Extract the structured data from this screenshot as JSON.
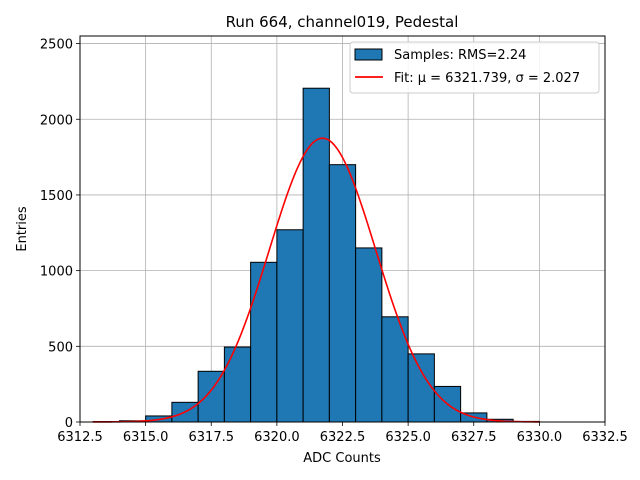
{
  "chart_data": {
    "type": "bar",
    "title": "Run 664, channel019, Pedestal",
    "xlabel": "ADC Counts",
    "ylabel": "Entries",
    "xlim": [
      6312.5,
      6332.5
    ],
    "ylim": [
      0,
      2550
    ],
    "xticks": [
      "6312.5",
      "6315.0",
      "6317.5",
      "6320.0",
      "6322.5",
      "6325.0",
      "6327.5",
      "6330.0",
      "6332.5"
    ],
    "yticks": [
      "0",
      "500",
      "1000",
      "1500",
      "2000",
      "2500"
    ],
    "grid": true,
    "legend_position": "top-right",
    "colors": {
      "bars": "#1f77b4",
      "bar_edge": "#000000",
      "fit": "#ff0000",
      "grid": "#b0b0b0"
    },
    "histogram": {
      "name": "Samples: RMS=2.24",
      "bin_edges": [
        6313,
        6314,
        6315,
        6316,
        6317,
        6318,
        6319,
        6320,
        6321,
        6322,
        6323,
        6324,
        6325,
        6326,
        6327,
        6328,
        6329,
        6330,
        6331,
        6332
      ],
      "counts": [
        3,
        8,
        40,
        130,
        335,
        495,
        1055,
        1270,
        2205,
        1700,
        1150,
        695,
        450,
        235,
        60,
        18,
        4,
        0,
        0
      ]
    },
    "fit": {
      "name": "Fit: μ = 6321.739, σ = 2.027",
      "mu": 6321.739,
      "sigma": 2.027,
      "amplitude": 1875,
      "x_range": [
        6313,
        6330
      ]
    }
  }
}
